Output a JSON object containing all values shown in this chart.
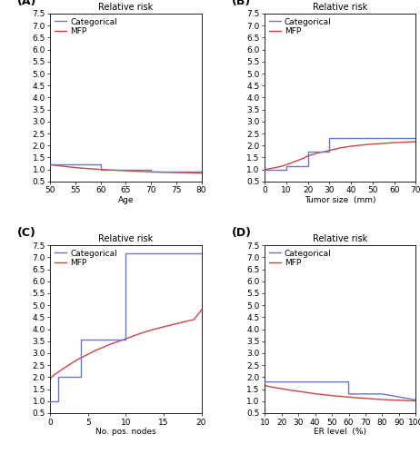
{
  "panels": [
    {
      "label": "(A)",
      "title": "Relative risk",
      "xlabel": "Age",
      "xlim": [
        50,
        80
      ],
      "xticks": [
        50,
        55,
        60,
        65,
        70,
        75,
        80
      ],
      "ylim": [
        0.5,
        7.5
      ],
      "yticks": [
        0.5,
        1.0,
        1.5,
        2.0,
        2.5,
        3.0,
        3.5,
        4.0,
        4.5,
        5.0,
        5.5,
        6.0,
        6.5,
        7.0,
        7.5
      ],
      "cat_x": [
        50,
        60,
        60,
        70,
        70,
        80
      ],
      "cat_y": [
        1.2,
        1.2,
        1.0,
        1.0,
        0.9,
        0.9
      ],
      "mfp_x": [
        50,
        52,
        54,
        56,
        58,
        60,
        62,
        64,
        66,
        68,
        70,
        72,
        74,
        76,
        78,
        80
      ],
      "mfp_y": [
        1.2,
        1.15,
        1.1,
        1.06,
        1.03,
        1.0,
        0.98,
        0.96,
        0.94,
        0.92,
        0.9,
        0.89,
        0.88,
        0.87,
        0.86,
        0.85
      ]
    },
    {
      "label": "(B)",
      "title": "Relative risk",
      "xlabel": "Tumor size  (mm)",
      "xlim": [
        0,
        70
      ],
      "xticks": [
        0,
        10,
        20,
        30,
        40,
        50,
        60,
        70
      ],
      "ylim": [
        0.5,
        7.5
      ],
      "yticks": [
        0.5,
        1.0,
        1.5,
        2.0,
        2.5,
        3.0,
        3.5,
        4.0,
        4.5,
        5.0,
        5.5,
        6.0,
        6.5,
        7.0,
        7.5
      ],
      "cat_x": [
        0,
        10,
        10,
        20,
        20,
        30,
        30,
        70
      ],
      "cat_y": [
        1.0,
        1.0,
        1.15,
        1.15,
        1.75,
        1.75,
        2.3,
        2.3
      ],
      "mfp_x": [
        0,
        2,
        5,
        8,
        10,
        13,
        15,
        18,
        20,
        23,
        25,
        28,
        30,
        35,
        40,
        45,
        50,
        55,
        60,
        65,
        70
      ],
      "mfp_y": [
        1.0,
        1.03,
        1.08,
        1.14,
        1.2,
        1.3,
        1.37,
        1.47,
        1.57,
        1.65,
        1.7,
        1.75,
        1.8,
        1.9,
        1.97,
        2.02,
        2.06,
        2.09,
        2.12,
        2.14,
        2.16
      ]
    },
    {
      "label": "(C)",
      "title": "Relative risk",
      "xlabel": "No. pos. nodes",
      "xlim": [
        0,
        20
      ],
      "xticks": [
        0,
        5,
        10,
        15,
        20
      ],
      "ylim": [
        0.5,
        7.5
      ],
      "yticks": [
        0.5,
        1.0,
        1.5,
        2.0,
        2.5,
        3.0,
        3.5,
        4.0,
        4.5,
        5.0,
        5.5,
        6.0,
        6.5,
        7.0,
        7.5
      ],
      "cat_x": [
        0,
        1,
        1,
        4,
        4,
        10,
        10,
        20
      ],
      "cat_y": [
        1.0,
        1.0,
        2.0,
        2.0,
        3.55,
        3.55,
        7.15,
        7.15
      ],
      "mfp_x": [
        0,
        0.5,
        1,
        1.5,
        2,
        2.5,
        3,
        3.5,
        4,
        4.5,
        5,
        5.5,
        6,
        7,
        8,
        9,
        10,
        11,
        12,
        13,
        14,
        15,
        16,
        17,
        18,
        19,
        20
      ],
      "mfp_y": [
        1.95,
        2.1,
        2.2,
        2.32,
        2.42,
        2.52,
        2.62,
        2.71,
        2.8,
        2.88,
        2.96,
        3.04,
        3.12,
        3.25,
        3.38,
        3.49,
        3.6,
        3.72,
        3.83,
        3.93,
        4.02,
        4.1,
        4.18,
        4.25,
        4.33,
        4.4,
        4.8
      ]
    },
    {
      "label": "(D)",
      "title": "Relative risk",
      "xlabel": "ER level  (%)",
      "xlim": [
        10,
        100
      ],
      "xticks": [
        10,
        20,
        30,
        40,
        50,
        60,
        70,
        80,
        90,
        100
      ],
      "ylim": [
        0.5,
        7.5
      ],
      "yticks": [
        0.5,
        1.0,
        1.5,
        2.0,
        2.5,
        3.0,
        3.5,
        4.0,
        4.5,
        5.0,
        5.5,
        6.0,
        6.5,
        7.0,
        7.5
      ],
      "cat_x": [
        10,
        60,
        60,
        80,
        80,
        100
      ],
      "cat_y": [
        1.8,
        1.8,
        1.3,
        1.3,
        1.3,
        1.05
      ],
      "mfp_x": [
        10,
        15,
        20,
        25,
        30,
        35,
        40,
        45,
        50,
        55,
        60,
        65,
        70,
        75,
        80,
        85,
        90,
        95,
        100
      ],
      "mfp_y": [
        1.65,
        1.58,
        1.52,
        1.46,
        1.41,
        1.36,
        1.31,
        1.27,
        1.23,
        1.2,
        1.17,
        1.14,
        1.12,
        1.09,
        1.07,
        1.05,
        1.04,
        1.02,
        1.01
      ]
    }
  ],
  "cat_color": "#6677cc",
  "mfp_color": "#cc4444",
  "legend_labels": [
    "Categorical",
    "MFP"
  ],
  "background_color": "#ffffff",
  "font_size": 6.5,
  "title_font_size": 7.0,
  "label_font_size": 9.0,
  "line_width": 1.0
}
